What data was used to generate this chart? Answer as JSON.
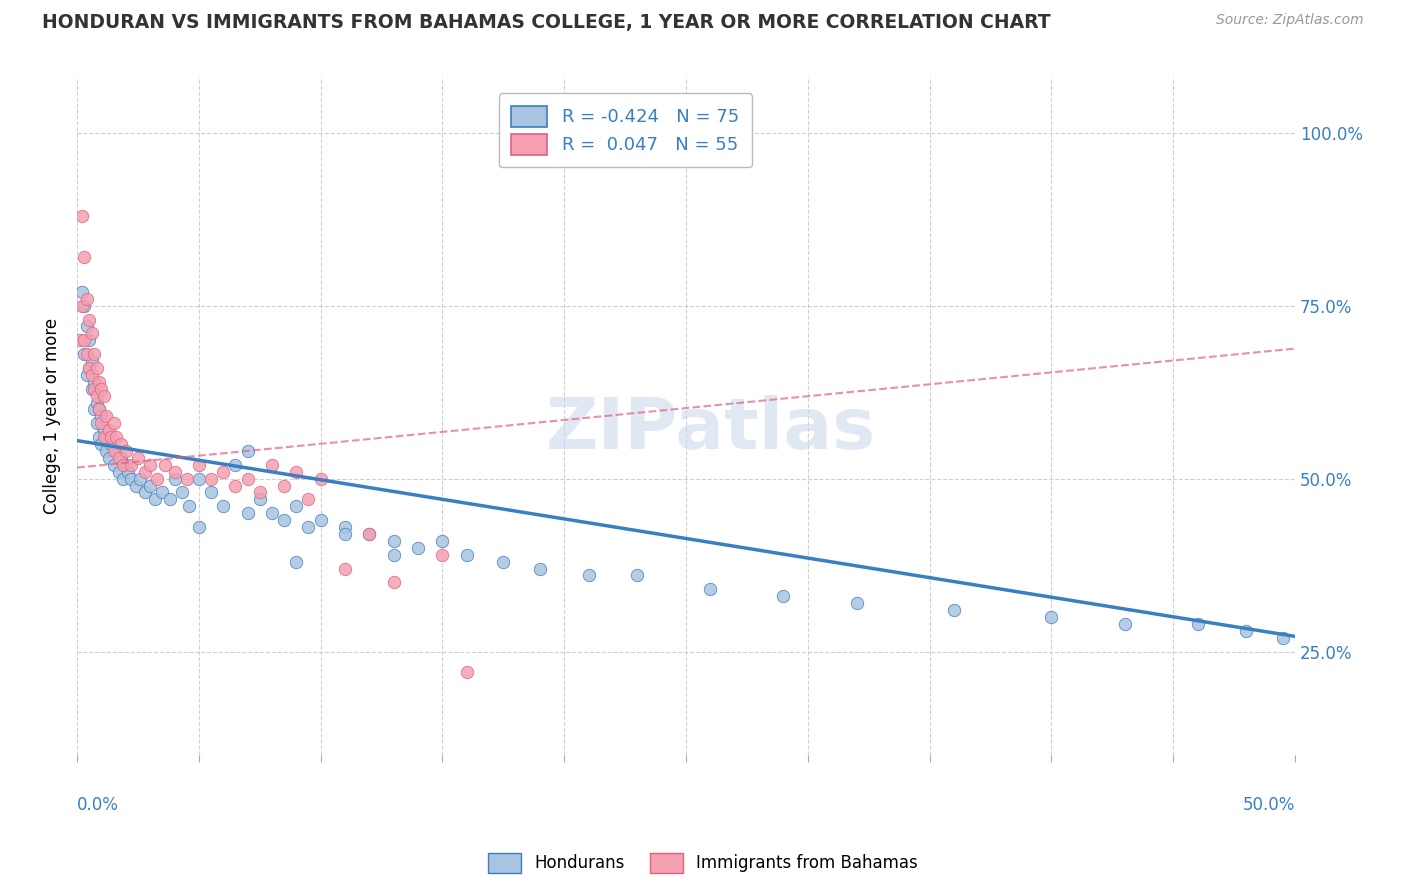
{
  "title": "HONDURAN VS IMMIGRANTS FROM BAHAMAS COLLEGE, 1 YEAR OR MORE CORRELATION CHART",
  "source": "Source: ZipAtlas.com",
  "ylabel": "College, 1 year or more",
  "right_yticklabels": [
    "25.0%",
    "50.0%",
    "75.0%",
    "100.0%"
  ],
  "right_ytick_vals": [
    0.25,
    0.5,
    0.75,
    1.0
  ],
  "xlim": [
    0.0,
    0.5
  ],
  "ylim": [
    0.1,
    1.08
  ],
  "blue_R": -0.424,
  "blue_N": 75,
  "pink_R": 0.047,
  "pink_N": 55,
  "blue_color": "#a8c4e0",
  "pink_color": "#f4a0b0",
  "blue_line_color": "#3a7fc1",
  "pink_line_color": "#e06080",
  "blue_line_style": "solid",
  "pink_line_style": "dashed",
  "legend_label_blue": "Hondurans",
  "legend_label_pink": "Immigrants from Bahamas",
  "watermark": "ZIPatlas",
  "blue_trend_x0": 0.0,
  "blue_trend_y0": 0.555,
  "blue_trend_x1": 0.5,
  "blue_trend_y1": 0.272,
  "pink_trend_x0": 0.0,
  "pink_trend_y0": 0.516,
  "pink_trend_x1": 0.5,
  "pink_trend_y1": 0.688,
  "blue_scatter_x": [
    0.002,
    0.003,
    0.003,
    0.004,
    0.004,
    0.005,
    0.005,
    0.006,
    0.006,
    0.007,
    0.007,
    0.008,
    0.008,
    0.009,
    0.009,
    0.01,
    0.01,
    0.011,
    0.012,
    0.012,
    0.013,
    0.014,
    0.015,
    0.016,
    0.017,
    0.018,
    0.019,
    0.02,
    0.021,
    0.022,
    0.024,
    0.026,
    0.028,
    0.03,
    0.032,
    0.035,
    0.038,
    0.04,
    0.043,
    0.046,
    0.05,
    0.055,
    0.06,
    0.065,
    0.07,
    0.075,
    0.08,
    0.085,
    0.09,
    0.095,
    0.1,
    0.11,
    0.12,
    0.13,
    0.14,
    0.15,
    0.16,
    0.175,
    0.19,
    0.21,
    0.23,
    0.26,
    0.29,
    0.32,
    0.36,
    0.4,
    0.43,
    0.46,
    0.48,
    0.495,
    0.05,
    0.07,
    0.09,
    0.11,
    0.13
  ],
  "blue_scatter_y": [
    0.77,
    0.75,
    0.68,
    0.72,
    0.65,
    0.7,
    0.66,
    0.63,
    0.67,
    0.6,
    0.64,
    0.61,
    0.58,
    0.6,
    0.56,
    0.59,
    0.55,
    0.57,
    0.54,
    0.56,
    0.53,
    0.55,
    0.52,
    0.54,
    0.51,
    0.53,
    0.5,
    0.52,
    0.51,
    0.5,
    0.49,
    0.5,
    0.48,
    0.49,
    0.47,
    0.48,
    0.47,
    0.5,
    0.48,
    0.46,
    0.5,
    0.48,
    0.46,
    0.52,
    0.54,
    0.47,
    0.45,
    0.44,
    0.46,
    0.43,
    0.44,
    0.43,
    0.42,
    0.41,
    0.4,
    0.41,
    0.39,
    0.38,
    0.37,
    0.36,
    0.36,
    0.34,
    0.33,
    0.32,
    0.31,
    0.3,
    0.29,
    0.29,
    0.28,
    0.27,
    0.43,
    0.45,
    0.38,
    0.42,
    0.39
  ],
  "pink_scatter_x": [
    0.001,
    0.002,
    0.002,
    0.003,
    0.003,
    0.004,
    0.004,
    0.005,
    0.005,
    0.006,
    0.006,
    0.007,
    0.007,
    0.008,
    0.008,
    0.009,
    0.009,
    0.01,
    0.01,
    0.011,
    0.011,
    0.012,
    0.013,
    0.014,
    0.015,
    0.015,
    0.016,
    0.017,
    0.018,
    0.019,
    0.02,
    0.022,
    0.025,
    0.028,
    0.03,
    0.033,
    0.036,
    0.04,
    0.045,
    0.05,
    0.055,
    0.06,
    0.065,
    0.07,
    0.075,
    0.08,
    0.085,
    0.09,
    0.095,
    0.1,
    0.11,
    0.12,
    0.13,
    0.15,
    0.16
  ],
  "pink_scatter_y": [
    0.7,
    0.88,
    0.75,
    0.82,
    0.7,
    0.76,
    0.68,
    0.73,
    0.66,
    0.71,
    0.65,
    0.68,
    0.63,
    0.66,
    0.62,
    0.64,
    0.6,
    0.63,
    0.58,
    0.62,
    0.56,
    0.59,
    0.57,
    0.56,
    0.58,
    0.54,
    0.56,
    0.53,
    0.55,
    0.52,
    0.54,
    0.52,
    0.53,
    0.51,
    0.52,
    0.5,
    0.52,
    0.51,
    0.5,
    0.52,
    0.5,
    0.51,
    0.49,
    0.5,
    0.48,
    0.52,
    0.49,
    0.51,
    0.47,
    0.5,
    0.37,
    0.42,
    0.35,
    0.39,
    0.22
  ]
}
